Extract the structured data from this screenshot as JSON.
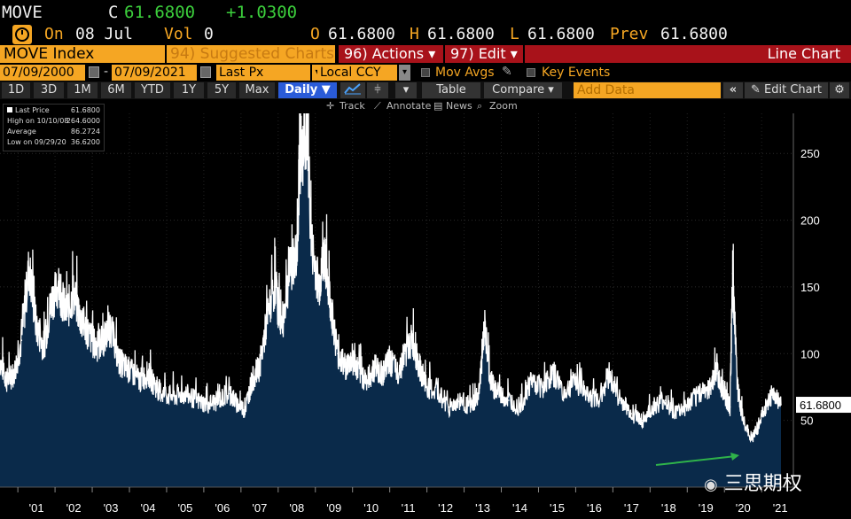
{
  "ticker": {
    "symbol": "MOVE",
    "close_label": "C",
    "close": "61.6800",
    "change": "+1.0300",
    "on_label": "On",
    "date": "08 Jul",
    "vol_label": "Vol",
    "vol": "0",
    "open_label": "O",
    "open": "61.6800",
    "high_label": "H",
    "high": "61.6800",
    "low_label": "L",
    "low": "61.6800",
    "prev_label": "Prev",
    "prev": "61.6800"
  },
  "titlebar": {
    "security": "MOVE Index",
    "suggested": "94) Suggested Charts",
    "actions": "96) Actions",
    "edit": "97) Edit",
    "chart_type": "Line Chart"
  },
  "range": {
    "start": "07/09/2000",
    "end": "07/09/2021",
    "field": "Last Px",
    "currency": "Local CCY",
    "mov_avgs": "Mov Avgs",
    "key_events": "Key Events"
  },
  "periods": [
    "1D",
    "3D",
    "1M",
    "6M",
    "YTD",
    "1Y",
    "5Y",
    "Max"
  ],
  "frequency": "Daily",
  "toolbar": {
    "table": "Table",
    "compare": "Compare",
    "add_data_placeholder": "Add Data",
    "edit_chart": "Edit Chart",
    "collapse": "«",
    "track": "Track",
    "annotate": "Annotate",
    "news": "News",
    "zoom": "Zoom"
  },
  "legend": {
    "last_price_label": "Last Price",
    "last_price": "61.6800",
    "high_label": "High on 10/10/08",
    "high": "264.6000",
    "average_label": "Average",
    "average": "86.2724",
    "low_label": "Low on 09/29/20",
    "low": "36.6200"
  },
  "watermark": "三思期权",
  "colors": {
    "bloomberg_orange": "#f5a623",
    "up_green": "#3ccf3c",
    "title_red": "#a8121a",
    "selected_blue": "#2a5bd8",
    "area_fill": "#0a2a4a",
    "arrow_green": "#2fb34a"
  },
  "chart_data": {
    "type": "area",
    "title": "MOVE Index",
    "series": [
      {
        "name": "Last Price"
      }
    ],
    "ylim": [
      0,
      280
    ],
    "yticks": [
      50,
      100,
      150,
      200,
      250
    ],
    "xticks": [
      "'01",
      "'02",
      "'03",
      "'04",
      "'05",
      "'06",
      "'07",
      "'08",
      "'09",
      "'10",
      "'11",
      "'12",
      "'13",
      "'14",
      "'15",
      "'16",
      "'17",
      "'18",
      "'19",
      "'20",
      "'21"
    ],
    "last_value_label": "61.6800",
    "x": [
      2000.52,
      2000.7,
      2000.9,
      2001.1,
      2001.3,
      2001.5,
      2001.7,
      2001.9,
      2002.1,
      2002.3,
      2002.5,
      2002.7,
      2002.9,
      2003.1,
      2003.3,
      2003.5,
      2003.7,
      2003.9,
      2004.1,
      2004.3,
      2004.5,
      2004.7,
      2004.9,
      2005.2,
      2005.5,
      2005.8,
      2006.1,
      2006.4,
      2006.7,
      2006.9,
      2007.1,
      2007.3,
      2007.5,
      2007.7,
      2007.9,
      2008.1,
      2008.3,
      2008.5,
      2008.6,
      2008.78,
      2008.9,
      2009.1,
      2009.25,
      2009.4,
      2009.6,
      2009.8,
      2010.0,
      2010.2,
      2010.4,
      2010.6,
      2010.8,
      2011.0,
      2011.2,
      2011.4,
      2011.6,
      2011.8,
      2012.0,
      2012.3,
      2012.6,
      2012.9,
      2013.2,
      2013.4,
      2013.55,
      2013.7,
      2013.9,
      2014.2,
      2014.5,
      2014.8,
      2015.1,
      2015.4,
      2015.7,
      2016.0,
      2016.3,
      2016.6,
      2016.9,
      2017.2,
      2017.5,
      2017.8,
      2018.1,
      2018.4,
      2018.7,
      2019.0,
      2019.3,
      2019.6,
      2019.8,
      2020.0,
      2020.15,
      2020.22,
      2020.35,
      2020.5,
      2020.74,
      2020.9,
      2021.1,
      2021.3,
      2021.52
    ],
    "y": [
      95,
      80,
      85,
      110,
      165,
      120,
      105,
      140,
      150,
      130,
      145,
      125,
      115,
      105,
      110,
      120,
      95,
      90,
      85,
      80,
      85,
      75,
      70,
      68,
      70,
      65,
      62,
      65,
      70,
      62,
      58,
      80,
      90,
      125,
      150,
      120,
      160,
      175,
      250,
      264.6,
      180,
      150,
      175,
      140,
      100,
      90,
      95,
      85,
      80,
      90,
      85,
      95,
      85,
      100,
      110,
      90,
      75,
      70,
      60,
      65,
      60,
      70,
      120,
      80,
      70,
      65,
      60,
      80,
      75,
      85,
      70,
      80,
      70,
      65,
      85,
      65,
      55,
      50,
      60,
      65,
      55,
      60,
      70,
      75,
      85,
      70,
      60,
      160,
      75,
      50,
      36.62,
      45,
      60,
      70,
      61.68
    ]
  }
}
